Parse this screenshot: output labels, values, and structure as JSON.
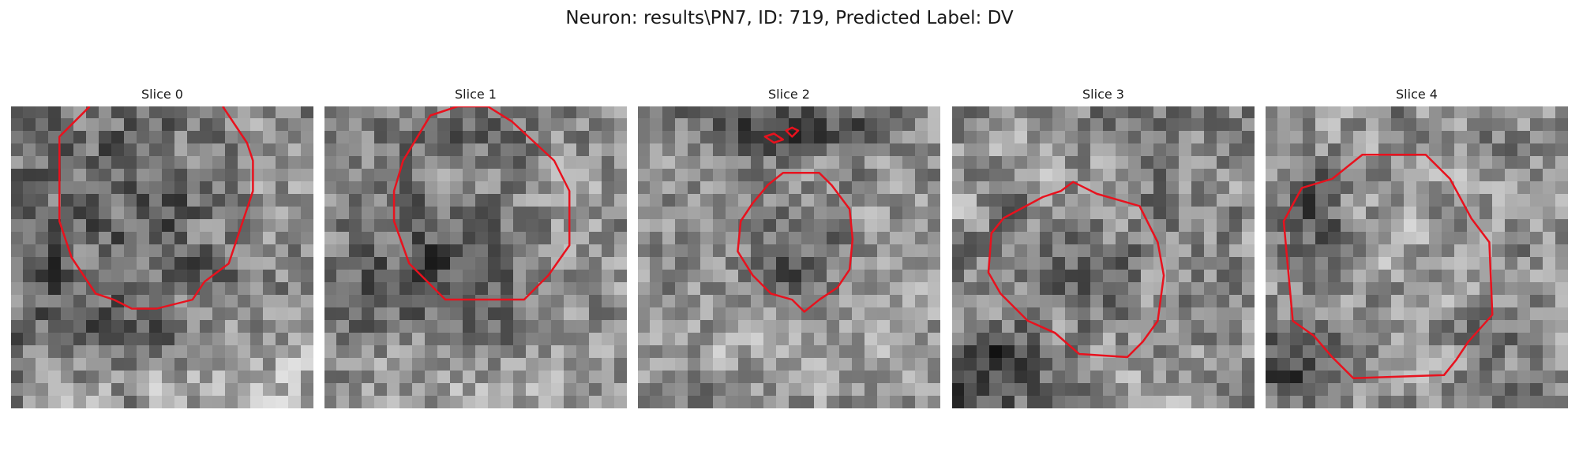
{
  "figure": {
    "title": "Neuron: results\\PN7, ID: 719, Predicted Label: DV",
    "contour_color": "#e8121e",
    "colormap": "gray",
    "panels": [
      {
        "title": "Slice 0"
      },
      {
        "title": "Slice 1"
      },
      {
        "title": "Slice 2"
      },
      {
        "title": "Slice 3"
      },
      {
        "title": "Slice 4"
      }
    ]
  }
}
